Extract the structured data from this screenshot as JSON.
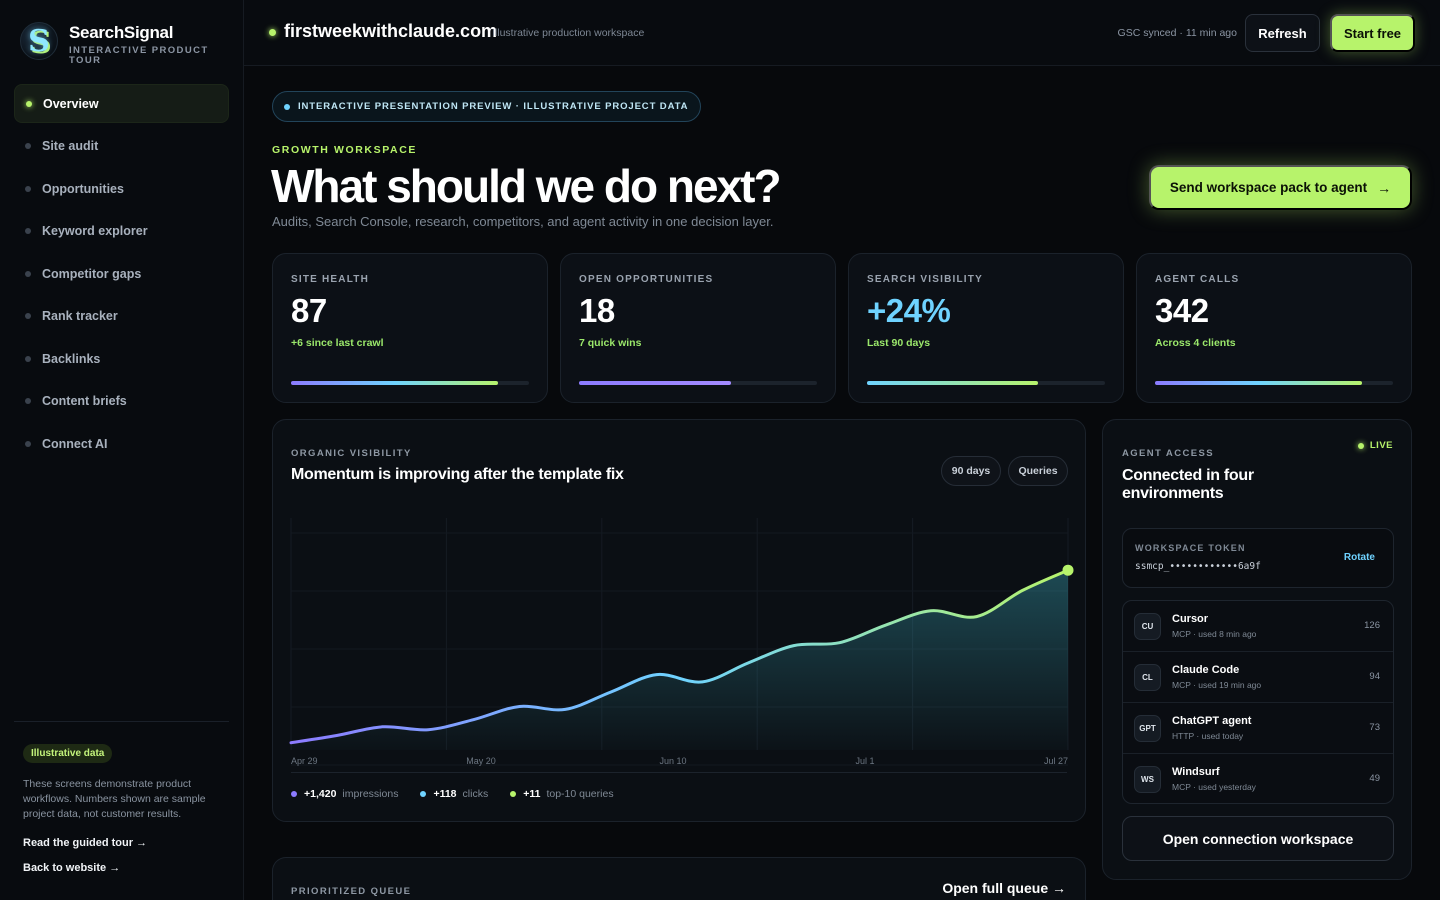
{
  "brand": {
    "name": "SearchSignal",
    "subtitle": "INTERACTIVE PRODUCT TOUR",
    "logo_letter": "S"
  },
  "sidebar": {
    "items": [
      {
        "label": "Overview",
        "active": true
      },
      {
        "label": "Site audit"
      },
      {
        "label": "Opportunities"
      },
      {
        "label": "Keyword explorer"
      },
      {
        "label": "Competitor gaps"
      },
      {
        "label": "Rank tracker"
      },
      {
        "label": "Backlinks"
      },
      {
        "label": "Content briefs"
      },
      {
        "label": "Connect AI"
      }
    ],
    "badge": "Illustrative data",
    "note": "These screens demonstrate product workflows. Numbers shown are sample project data, not customer results.",
    "links": [
      "Read the guided tour →",
      "Back to website →"
    ]
  },
  "topbar": {
    "domain": "firstweekwithclaude.com",
    "domain_sub": "Illustrative production workspace",
    "sync": "GSC synced · 11 min ago",
    "refresh_label": "Refresh",
    "start_label": "Start free"
  },
  "hero": {
    "pill": "INTERACTIVE PRESENTATION PREVIEW · ILLUSTRATIVE PROJECT DATA",
    "eyebrow": "GROWTH WORKSPACE",
    "title": "What should we do next?",
    "subtitle": "Audits, Search Console, research, competitors, and agent activity in one decision layer.",
    "cta": "Send workspace pack to agent",
    "cta_icon": "arrow-right-icon"
  },
  "kpis": [
    {
      "label": "SITE HEALTH",
      "value": "87",
      "note": "+6 since last crawl",
      "progress": 0.87
    },
    {
      "label": "OPEN OPPORTUNITIES",
      "value": "18",
      "note": "7 quick wins",
      "progress": 0.64
    },
    {
      "label": "SEARCH VISIBILITY",
      "value": "+24%",
      "note": "Last 90 days",
      "progress": 0.72
    },
    {
      "label": "AGENT CALLS",
      "value": "342",
      "note": "Across 4 clients",
      "progress": 0.87
    }
  ],
  "chart": {
    "eyebrow": "ORGANIC VISIBILITY",
    "title": "Momentum is improving after the template fix",
    "chips": [
      "90 days",
      "Queries"
    ],
    "legend": [
      {
        "value": "+1,420",
        "label": "impressions",
        "color": "#8c7bff"
      },
      {
        "value": "+118",
        "label": "clicks",
        "color": "#6fd3ff"
      },
      {
        "value": "+11",
        "label": "top-10 queries",
        "color": "#b7f36b"
      }
    ]
  },
  "chart_data": {
    "type": "area",
    "title": "Momentum is improving after the template fix",
    "xlabel": "",
    "ylabel": "",
    "x_ticks": [
      "Apr 29",
      "May 20",
      "Jun 10",
      "Jul 1",
      "Jul 27"
    ],
    "grid": true,
    "series": [
      {
        "values": [
          5,
          10,
          16,
          14,
          21,
          30,
          28,
          40,
          52,
          47,
          60,
          72,
          74,
          86,
          96,
          92,
          110,
          124
        ]
      }
    ],
    "ylim": [
      0,
      160
    ]
  },
  "agent_access": {
    "eyebrow": "AGENT ACCESS",
    "live": "LIVE",
    "title": "Connected in four environments",
    "token_label": "WORKSPACE TOKEN",
    "token_value": "ssmcp_••••••••••••6a9f",
    "rotate_label": "Rotate",
    "environments": [
      {
        "badge": "CU",
        "name": "Cursor",
        "meta": "MCP · used 8 min ago",
        "count": "126"
      },
      {
        "badge": "CL",
        "name": "Claude Code",
        "meta": "MCP · used 19 min ago",
        "count": "94"
      },
      {
        "badge": "GPT",
        "name": "ChatGPT agent",
        "meta": "HTTP · used today",
        "count": "73"
      },
      {
        "badge": "WS",
        "name": "Windsurf",
        "meta": "MCP · used yesterday",
        "count": "49"
      }
    ],
    "open_label": "Open connection workspace"
  },
  "queue": {
    "eyebrow": "PRIORITIZED QUEUE",
    "link": "Open full queue →"
  }
}
